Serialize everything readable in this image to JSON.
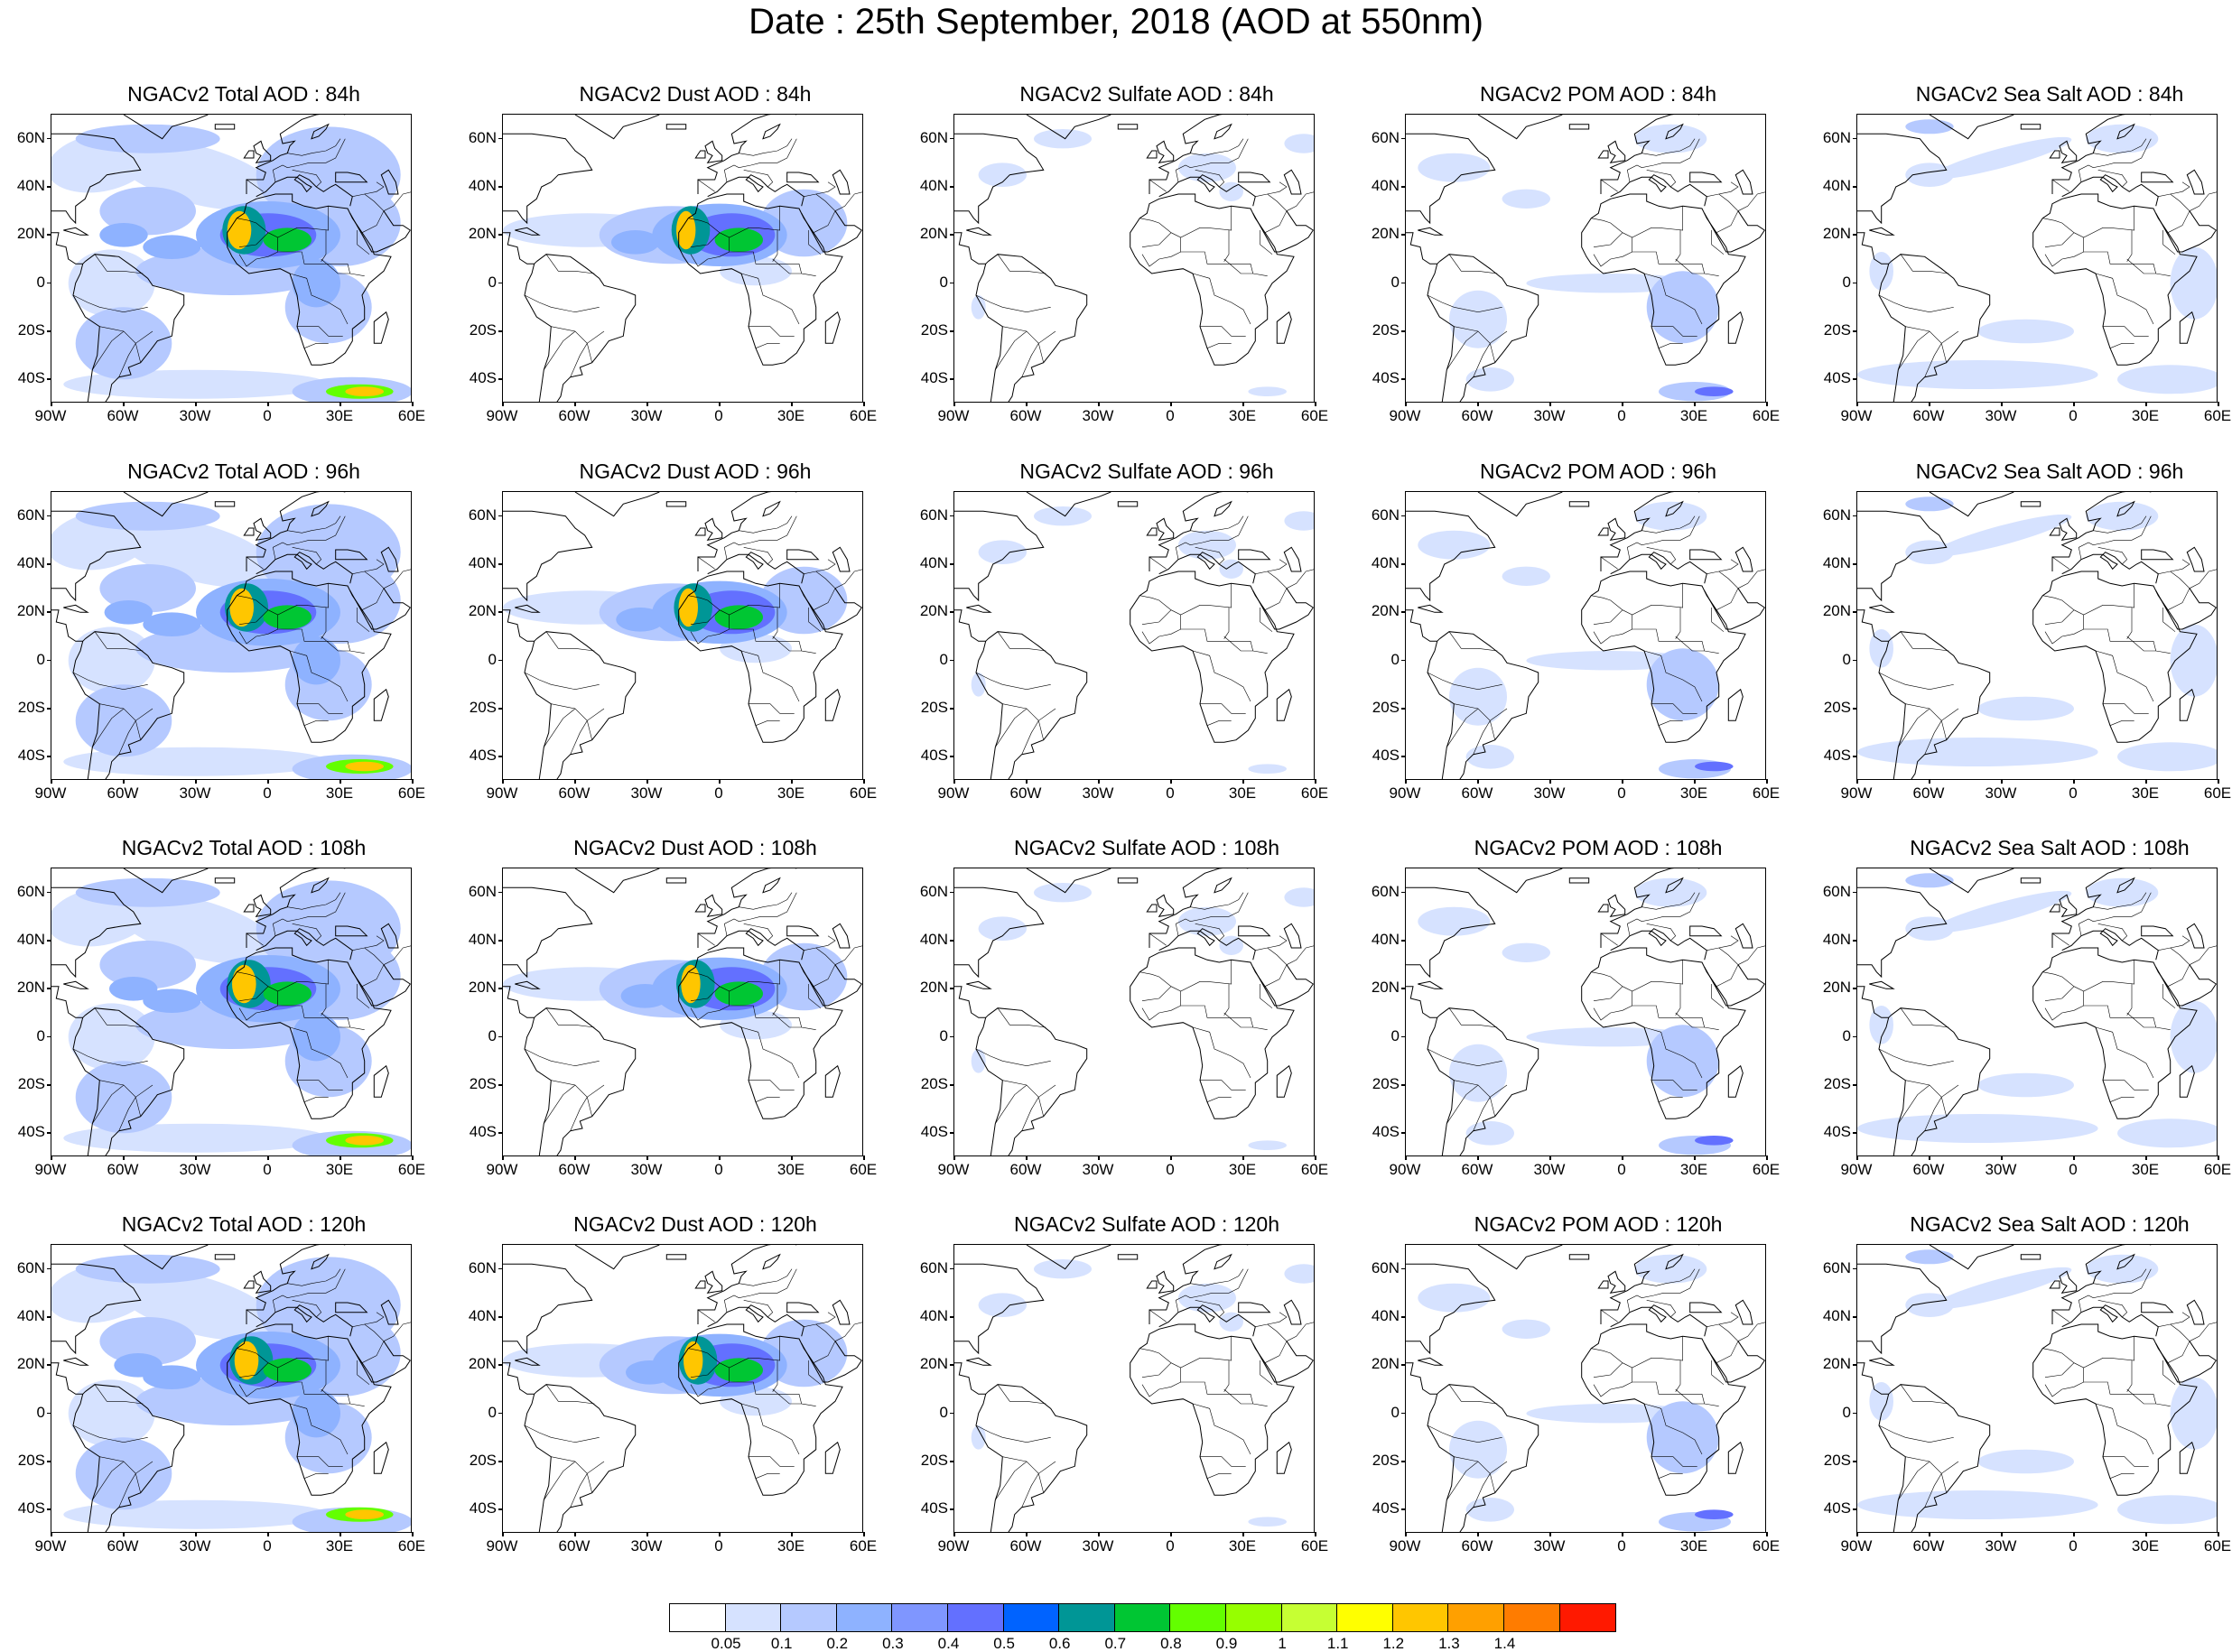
{
  "title": "Date : 25th September, 2018 (AOD at 550nm)",
  "lat_labels": [
    "60N",
    "40N",
    "20N",
    "0",
    "20S",
    "40S"
  ],
  "lon_labels": [
    "90W",
    "60W",
    "30W",
    "0",
    "30E",
    "60E"
  ],
  "panels": [
    [
      {
        "title": "NGACv2 Total AOD : 84h",
        "species": "total",
        "hour": 84
      },
      {
        "title": "NGACv2 Dust AOD : 84h",
        "species": "dust",
        "hour": 84
      },
      {
        "title": "NGACv2 Sulfate AOD : 84h",
        "species": "sulfate",
        "hour": 84
      },
      {
        "title": "NGACv2 POM AOD : 84h",
        "species": "pom",
        "hour": 84
      },
      {
        "title": "NGACv2 Sea Salt AOD : 84h",
        "species": "seasalt",
        "hour": 84
      }
    ],
    [
      {
        "title": "NGACv2 Total AOD : 96h",
        "species": "total",
        "hour": 96
      },
      {
        "title": "NGACv2 Dust AOD : 96h",
        "species": "dust",
        "hour": 96
      },
      {
        "title": "NGACv2 Sulfate AOD : 96h",
        "species": "sulfate",
        "hour": 96
      },
      {
        "title": "NGACv2 POM AOD : 96h",
        "species": "pom",
        "hour": 96
      },
      {
        "title": "NGACv2 Sea Salt AOD : 96h",
        "species": "seasalt",
        "hour": 96
      }
    ],
    [
      {
        "title": "NGACv2 Total AOD : 108h",
        "species": "total",
        "hour": 108
      },
      {
        "title": "NGACv2 Dust AOD : 108h",
        "species": "dust",
        "hour": 108
      },
      {
        "title": "NGACv2 Sulfate AOD : 108h",
        "species": "sulfate",
        "hour": 108
      },
      {
        "title": "NGACv2 POM AOD : 108h",
        "species": "pom",
        "hour": 108
      },
      {
        "title": "NGACv2 Sea Salt AOD : 108h",
        "species": "seasalt",
        "hour": 108
      }
    ],
    [
      {
        "title": "NGACv2 Total AOD : 120h",
        "species": "total",
        "hour": 120
      },
      {
        "title": "NGACv2 Dust AOD : 120h",
        "species": "dust",
        "hour": 120
      },
      {
        "title": "NGACv2 Sulfate AOD : 120h",
        "species": "sulfate",
        "hour": 120
      },
      {
        "title": "NGACv2 POM AOD : 120h",
        "species": "pom",
        "hour": 120
      },
      {
        "title": "NGACv2 Sea Salt  AOD : 120h",
        "species": "seasalt",
        "hour": 120
      }
    ]
  ],
  "colorbar": {
    "colors": [
      "#ffffff",
      "#d6e2ff",
      "#b5c9ff",
      "#8eb2ff",
      "#7f96ff",
      "#6370ff",
      "#0063ff",
      "#009696",
      "#00c633",
      "#63ff00",
      "#96ff00",
      "#c6ff33",
      "#ffff00",
      "#ffc600",
      "#ffa000",
      "#ff7c00",
      "#ff1900"
    ],
    "labels": [
      "0.05",
      "0.1",
      "0.2",
      "0.3",
      "0.4",
      "0.5",
      "0.6",
      "0.7",
      "0.8",
      "0.9",
      "1",
      "1.1",
      "1.2",
      "1.3",
      "1.4"
    ]
  }
}
